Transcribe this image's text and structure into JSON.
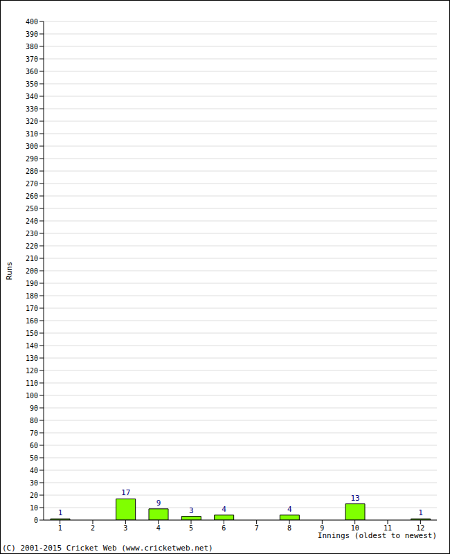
{
  "chart_data": {
    "type": "bar",
    "x_label": "Innings (oldest to newest)",
    "y_label": "Runs",
    "annotation": "(C) 2001-2015 Cricket Web (www.cricketweb.net)",
    "categories": [
      "1",
      "2",
      "3",
      "4",
      "5",
      "6",
      "7",
      "8",
      "9",
      "10",
      "11",
      "12"
    ],
    "values": [
      1,
      0,
      17,
      9,
      3,
      4,
      0,
      4,
      0,
      13,
      0,
      1
    ],
    "color": "#80ff00",
    "ylim": [
      0,
      400
    ],
    "yticks": [
      0,
      10,
      20,
      30,
      40,
      50,
      60,
      70,
      80,
      90,
      100,
      110,
      120,
      130,
      140,
      150,
      160,
      170,
      180,
      190,
      200,
      210,
      220,
      230,
      240,
      250,
      260,
      270,
      280,
      290,
      300,
      310,
      320,
      330,
      340,
      350,
      360,
      370,
      380,
      390,
      400
    ],
    "grid": true,
    "data_labels": true
  }
}
